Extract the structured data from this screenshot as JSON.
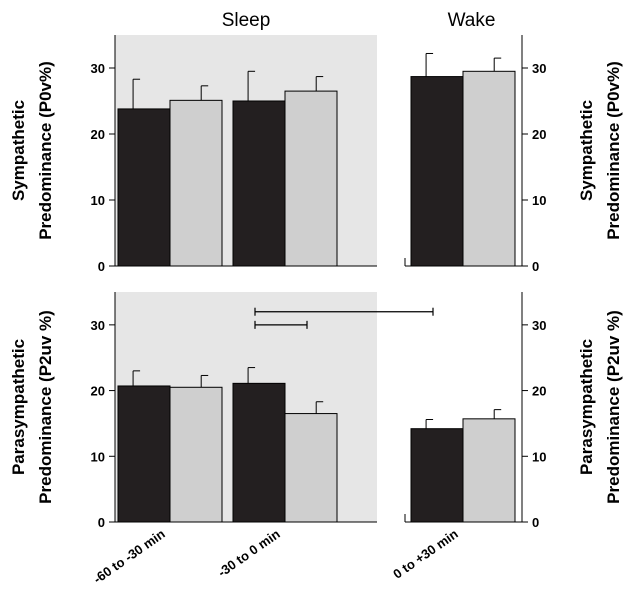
{
  "chart_data": [
    {
      "type": "bar",
      "panel_titles": [
        "Sleep",
        "Wake"
      ],
      "ylabel": [
        "Sympathetic",
        "Predominance (P0v%)"
      ],
      "ylim": [
        0,
        35
      ],
      "yticks": [
        "0",
        "10",
        "20",
        "30"
      ],
      "categories": [
        "-60 to -30 min",
        "-30 to 0 min",
        "0 to +30 min"
      ],
      "series": [
        {
          "color": "#231f20",
          "values": [
            23.8,
            25.0,
            28.7
          ],
          "errors": [
            4.5,
            4.5,
            3.5
          ]
        },
        {
          "color": "#cfcfcf",
          "values": [
            25.1,
            26.5,
            29.5
          ],
          "errors": [
            2.2,
            2.2,
            2.0
          ]
        }
      ],
      "shaded_background": "sleep",
      "grid": false
    },
    {
      "type": "bar",
      "ylabel": [
        "Parasympathetic",
        "Predominance (P2uv %)"
      ],
      "ylim": [
        0,
        35
      ],
      "yticks": [
        "0",
        "10",
        "20",
        "30"
      ],
      "categories": [
        "-60 to -30 min",
        "-30 to 0 min",
        "0 to +30 min"
      ],
      "series": [
        {
          "color": "#231f20",
          "values": [
            20.7,
            21.1,
            14.2
          ],
          "errors": [
            2.3,
            2.4,
            1.4
          ]
        },
        {
          "color": "#cfcfcf",
          "values": [
            20.5,
            16.5,
            15.7
          ],
          "errors": [
            1.8,
            1.8,
            1.4
          ]
        }
      ],
      "significance_brackets": [
        {
          "y": 32,
          "from": "-30 to 0 min",
          "to": "0 to +30 min"
        },
        {
          "y": 30,
          "from": "-30 to 0 min",
          "to": "-30 to 0 min"
        }
      ],
      "shaded_background": "sleep",
      "grid": false
    }
  ]
}
